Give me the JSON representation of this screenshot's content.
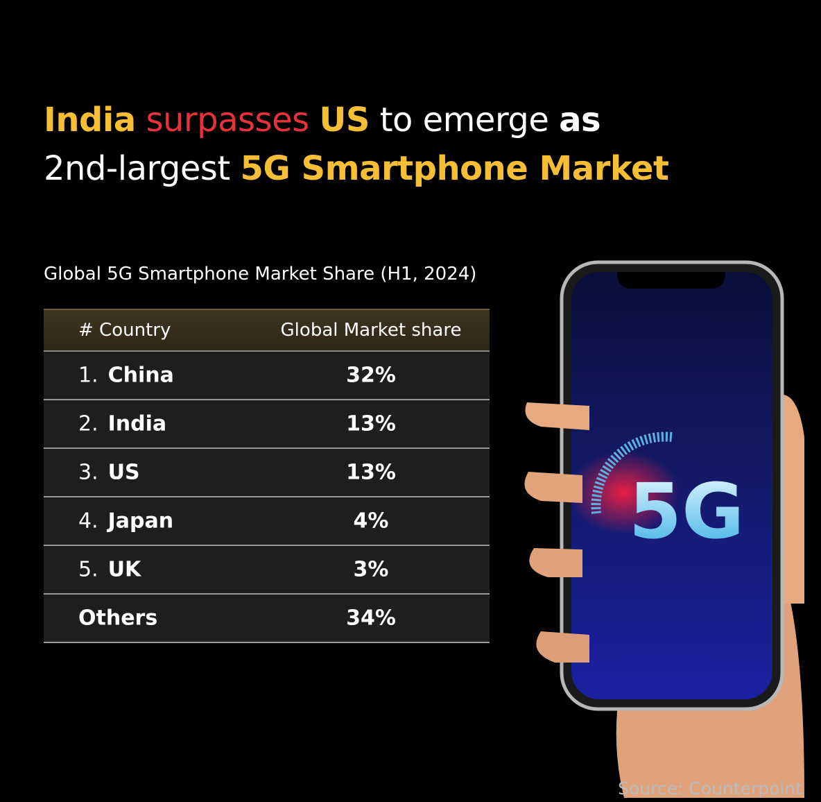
{
  "header": {
    "title_line1": [
      "India",
      "surpasses",
      "US",
      "to emerge",
      "as"
    ],
    "title_line2": [
      "2nd-largest",
      "5G Smartphone Market"
    ]
  },
  "subtitle": "Global 5G Smartphone Market Share (H1, 2024)",
  "table": {
    "columns": [
      "# Country",
      "Global Market share"
    ],
    "rows": [
      {
        "rank": "1.",
        "country": "China",
        "share": "32%"
      },
      {
        "rank": "2.",
        "country": "India",
        "share": "13%"
      },
      {
        "rank": "3.",
        "country": "US",
        "share": "13%"
      },
      {
        "rank": "4.",
        "country": "Japan",
        "share": "4%"
      },
      {
        "rank": "5.",
        "country": "UK",
        "share": "3%"
      },
      {
        "country": "Others",
        "share": "34%"
      }
    ]
  },
  "phone": {
    "screen_text": "5G"
  },
  "source": "Source: Counterpoint"
}
